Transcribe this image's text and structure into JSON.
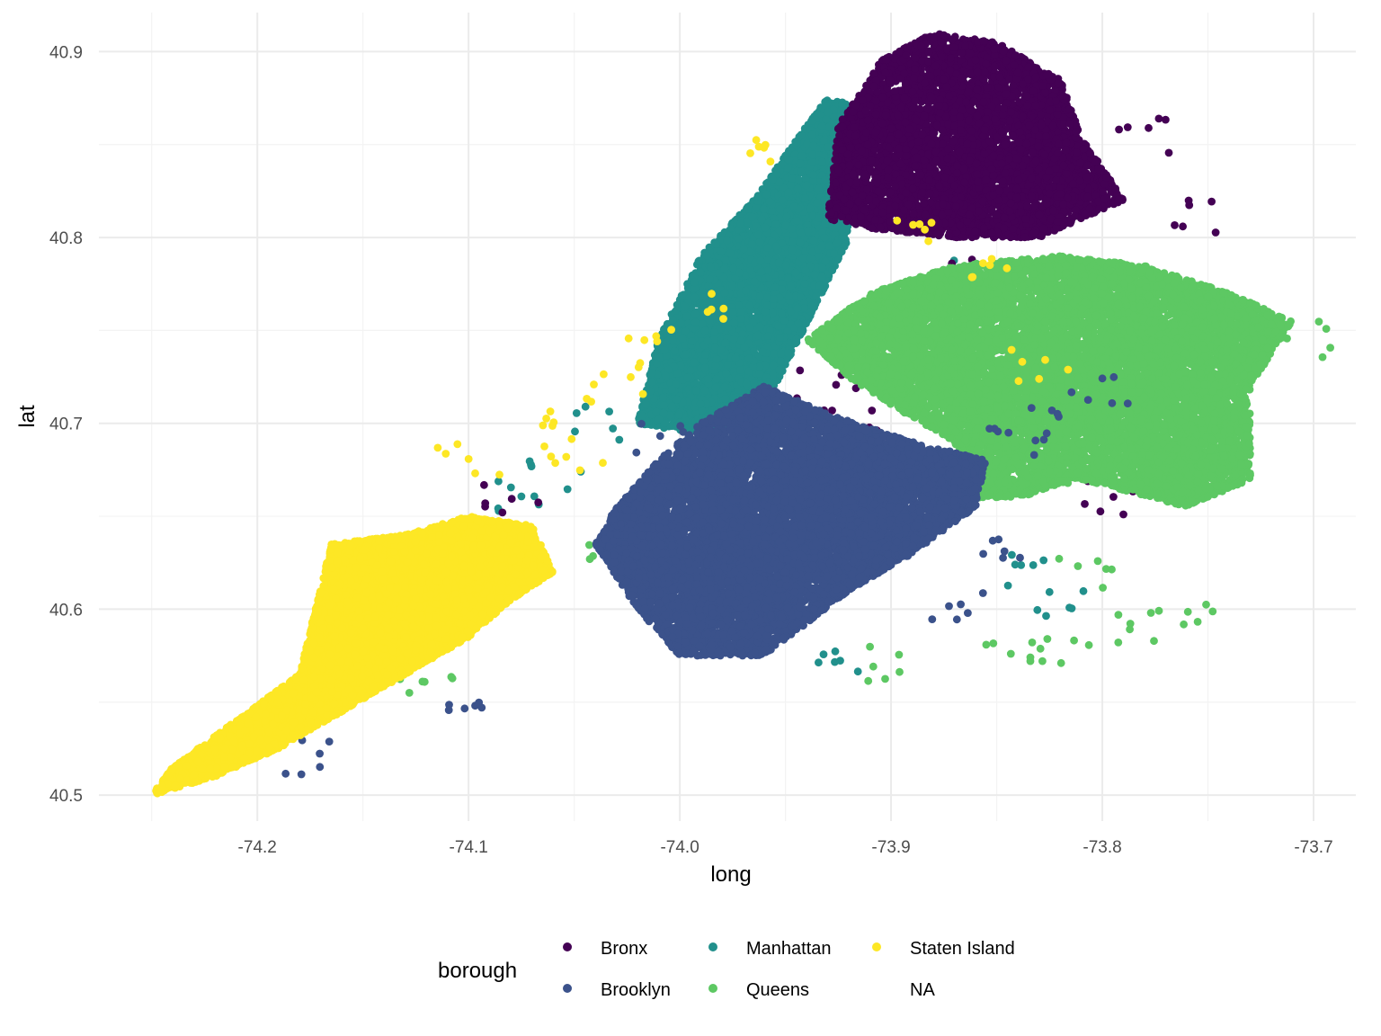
{
  "chart_data": {
    "type": "scatter",
    "title": "",
    "xlabel": "long",
    "ylabel": "lat",
    "xlim": [
      -74.275,
      -73.68
    ],
    "ylim": [
      40.486,
      40.921
    ],
    "x_ticks": [
      -74.2,
      -74.1,
      -74.0,
      -73.9,
      -73.8,
      -73.7
    ],
    "x_tick_labels": [
      "-74.2",
      "-74.1",
      "-74.0",
      "-73.9",
      "-73.8",
      "-73.7"
    ],
    "y_ticks": [
      40.5,
      40.6,
      40.7,
      40.8,
      40.9
    ],
    "y_tick_labels": [
      "40.5",
      "40.6",
      "40.7",
      "40.8",
      "40.9"
    ],
    "grid": true,
    "legend": {
      "title": "borough",
      "position": "bottom",
      "entries": [
        {
          "label": "Bronx",
          "color": "#440154"
        },
        {
          "label": "Brooklyn",
          "color": "#3B528B"
        },
        {
          "label": "Manhattan",
          "color": "#21908C"
        },
        {
          "label": "Queens",
          "color": "#5DC863"
        },
        {
          "label": "Staten Island",
          "color": "#FDE725"
        },
        {
          "label": "NA",
          "color": null
        }
      ]
    },
    "series": [
      {
        "name": "Manhattan",
        "color": "#21908C",
        "region": [
          [
            -74.02,
            40.7
          ],
          [
            -74.01,
            40.745
          ],
          [
            -73.99,
            40.79
          ],
          [
            -73.965,
            40.82
          ],
          [
            -73.94,
            40.86
          ],
          [
            -73.93,
            40.875
          ],
          [
            -73.915,
            40.87
          ],
          [
            -73.92,
            40.8
          ],
          [
            -73.935,
            40.765
          ],
          [
            -73.955,
            40.72
          ],
          [
            -73.975,
            40.7
          ],
          [
            -73.995,
            40.695
          ]
        ],
        "points": [
          [
            -74.04,
            40.7
          ],
          [
            -74.06,
            40.67
          ],
          [
            -74.08,
            40.66
          ],
          [
            -73.86,
            40.78
          ],
          [
            -73.89,
            40.74
          ],
          [
            -73.97,
            40.68
          ],
          [
            -73.82,
            40.6
          ],
          [
            -73.93,
            40.57
          ],
          [
            -74.13,
            40.62
          ],
          [
            -73.84,
            40.62
          ]
        ]
      },
      {
        "name": "Bronx",
        "color": "#440154",
        "region": [
          [
            -73.93,
            40.81
          ],
          [
            -73.925,
            40.86
          ],
          [
            -73.905,
            40.895
          ],
          [
            -73.88,
            40.91
          ],
          [
            -73.85,
            40.905
          ],
          [
            -73.82,
            40.885
          ],
          [
            -73.81,
            40.855
          ],
          [
            -73.79,
            40.82
          ],
          [
            -73.83,
            40.8
          ],
          [
            -73.87,
            40.8
          ],
          [
            -73.91,
            40.805
          ]
        ],
        "points": [
          [
            -73.78,
            40.855
          ],
          [
            -73.76,
            40.81
          ],
          [
            -73.86,
            40.78
          ],
          [
            -73.92,
            40.7
          ],
          [
            -74.08,
            40.66
          ],
          [
            -74.12,
            40.61
          ],
          [
            -73.93,
            40.72
          ],
          [
            -73.8,
            40.66
          ]
        ]
      },
      {
        "name": "Queens",
        "color": "#5DC863",
        "region": [
          [
            -73.94,
            40.745
          ],
          [
            -73.91,
            40.77
          ],
          [
            -73.87,
            40.785
          ],
          [
            -73.82,
            40.79
          ],
          [
            -73.78,
            40.785
          ],
          [
            -73.74,
            40.77
          ],
          [
            -73.71,
            40.755
          ],
          [
            -73.73,
            40.72
          ],
          [
            -73.73,
            40.67
          ],
          [
            -73.76,
            40.655
          ],
          [
            -73.81,
            40.67
          ],
          [
            -73.84,
            40.66
          ],
          [
            -73.86,
            40.66
          ],
          [
            -73.87,
            40.69
          ],
          [
            -73.9,
            40.71
          ],
          [
            -73.92,
            40.725
          ]
        ],
        "points": [
          [
            -73.7,
            40.745
          ],
          [
            -73.9,
            40.57
          ],
          [
            -73.84,
            40.575
          ],
          [
            -73.82,
            40.58
          ],
          [
            -73.78,
            40.59
          ],
          [
            -73.76,
            40.6
          ],
          [
            -73.81,
            40.62
          ],
          [
            -74.03,
            40.63
          ],
          [
            -74.12,
            40.56
          ],
          [
            -73.86,
            40.7
          ]
        ]
      },
      {
        "name": "Brooklyn",
        "color": "#3B528B",
        "region": [
          [
            -74.04,
            40.635
          ],
          [
            -74.03,
            40.655
          ],
          [
            -74.01,
            40.68
          ],
          [
            -73.99,
            40.7
          ],
          [
            -73.96,
            40.72
          ],
          [
            -73.93,
            40.705
          ],
          [
            -73.89,
            40.69
          ],
          [
            -73.855,
            40.68
          ],
          [
            -73.86,
            40.655
          ],
          [
            -73.89,
            40.63
          ],
          [
            -73.92,
            40.61
          ],
          [
            -73.96,
            40.575
          ],
          [
            -74.0,
            40.575
          ],
          [
            -74.02,
            40.6
          ]
        ],
        "points": [
          [
            -73.84,
            40.69
          ],
          [
            -73.82,
            40.7
          ],
          [
            -73.8,
            40.72
          ],
          [
            -74.1,
            40.54
          ],
          [
            -74.18,
            40.52
          ],
          [
            -74.01,
            40.69
          ],
          [
            -73.87,
            40.6
          ],
          [
            -73.85,
            40.63
          ]
        ]
      },
      {
        "name": "Staten Island",
        "color": "#FDE725",
        "region": [
          [
            -74.25,
            40.5
          ],
          [
            -74.24,
            40.515
          ],
          [
            -74.21,
            40.54
          ],
          [
            -74.18,
            40.565
          ],
          [
            -74.165,
            40.635
          ],
          [
            -74.13,
            40.64
          ],
          [
            -74.1,
            40.65
          ],
          [
            -74.07,
            40.645
          ],
          [
            -74.06,
            40.62
          ],
          [
            -74.08,
            40.605
          ],
          [
            -74.1,
            40.585
          ],
          [
            -74.13,
            40.565
          ],
          [
            -74.16,
            40.545
          ],
          [
            -74.19,
            40.525
          ],
          [
            -74.22,
            40.51
          ]
        ],
        "points": [
          [
            -74.03,
            40.72
          ],
          [
            -73.99,
            40.76
          ],
          [
            -74.06,
            40.7
          ],
          [
            -74.05,
            40.68
          ],
          [
            -73.89,
            40.8
          ],
          [
            -73.85,
            40.78
          ],
          [
            -74.1,
            40.68
          ],
          [
            -73.83,
            40.73
          ],
          [
            -73.96,
            40.85
          ],
          [
            -74.02,
            40.74
          ]
        ]
      }
    ]
  }
}
